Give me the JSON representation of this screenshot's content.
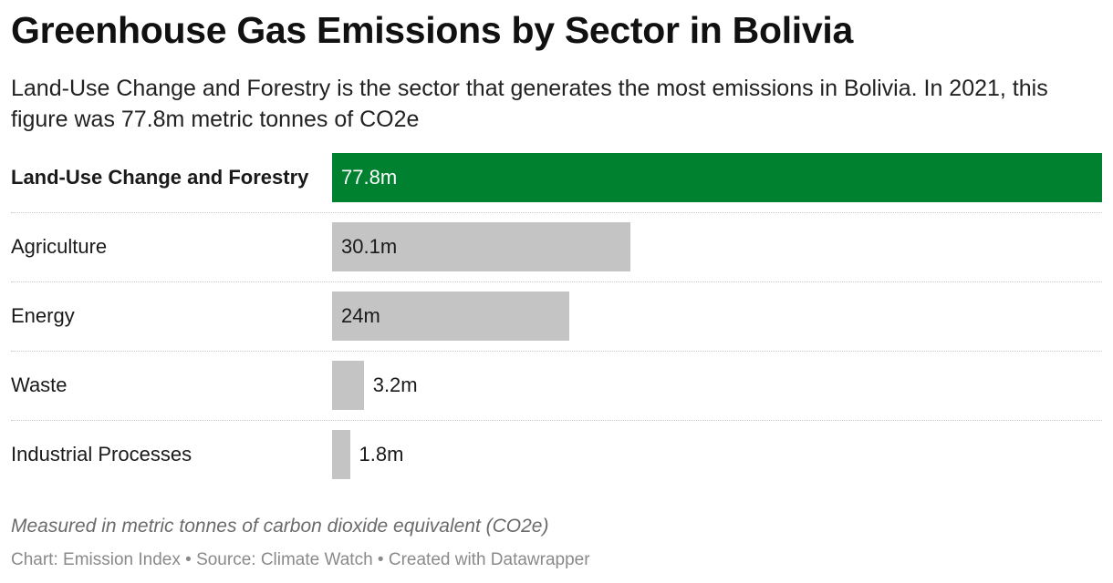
{
  "header": {
    "title": "Greenhouse Gas Emissions by Sector in Bolivia",
    "subtitle": "Land-Use Change and Forestry is the sector that generates the most emissions in Bolivia. In 2021, this figure was 77.8m metric tonnes of CO2e"
  },
  "chart_data": {
    "type": "bar",
    "orientation": "horizontal",
    "categories": [
      "Land-Use Change and Forestry",
      "Agriculture",
      "Energy",
      "Waste",
      "Industrial Processes"
    ],
    "values": [
      77.8,
      30.1,
      24,
      3.2,
      1.8
    ],
    "value_labels": [
      "77.8m",
      "30.1m",
      "24m",
      "3.2m",
      "1.8m"
    ],
    "highlighted_category": "Land-Use Change and Forestry",
    "xlim": [
      0,
      77.8
    ],
    "grid": false,
    "colors": {
      "highlight": "#00812f",
      "default": "#c4c4c4",
      "highlight_text": "#ffffff",
      "default_text": "#1a1a1a"
    }
  },
  "notes": {
    "unit_note": "Measured in metric tonnes of carbon dioxide equivalent (CO2e)",
    "footer": "Chart: Emission Index • Source: Climate Watch • Created with Datawrapper"
  }
}
